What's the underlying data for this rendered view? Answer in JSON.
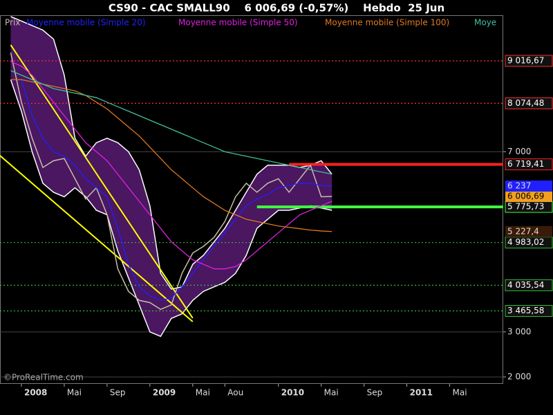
{
  "chart_data": {
    "type": "line",
    "title": "CS90 - CAC SMALL90    6 006,69 (-0,57%)    Hebdo  25 Jun",
    "credit": "©ProRealTime.com",
    "x": [
      "2007-12",
      "2008-01",
      "2008-02",
      "2008-03",
      "2008-04",
      "2008-05",
      "2008-06",
      "2008-07",
      "2008-08",
      "2008-09",
      "2008-10",
      "2008-11",
      "2008-12",
      "2009-01",
      "2009-02",
      "2009-03",
      "2009-04",
      "2009-05",
      "2009-06",
      "2009-07",
      "2009-08",
      "2009-09",
      "2009-10",
      "2009-11",
      "2009-12",
      "2010-01",
      "2010-02",
      "2010-03",
      "2010-04",
      "2010-05",
      "2010-06"
    ],
    "xlim": [
      "2007-11",
      "2011-10"
    ],
    "xticks": [
      {
        "value": "2008-01",
        "label": "2008"
      },
      {
        "value": "2008-05",
        "label": "Mai"
      },
      {
        "value": "2008-09",
        "label": "Sep"
      },
      {
        "value": "2009-01",
        "label": "2009"
      },
      {
        "value": "2009-05",
        "label": "Mai"
      },
      {
        "value": "2009-08",
        "label": "Aou"
      },
      {
        "value": "2010-01",
        "label": "2010"
      },
      {
        "value": "2010-05",
        "label": "Mai"
      },
      {
        "value": "2010-09",
        "label": "Sep"
      },
      {
        "value": "2011-01",
        "label": "2011"
      },
      {
        "value": "2011-05",
        "label": "Mai"
      }
    ],
    "bold_xticks": [
      "2008",
      "2009",
      "2010",
      "2011"
    ],
    "ylim": [
      1846,
      10030
    ],
    "yticks": [
      {
        "value": 2000,
        "label": "2 000"
      },
      {
        "value": 3000,
        "label": "3 000"
      },
      {
        "value": 7000,
        "label": "7 000"
      }
    ],
    "grid": true,
    "series": [
      {
        "name": "Prix",
        "color": "#c8bfa8",
        "last_value_label": "6 006,69",
        "label_fill": "#f0a020",
        "values": [
          9200,
          8100,
          7300,
          6650,
          6800,
          6850,
          6400,
          5950,
          6200,
          5600,
          4400,
          3900,
          3700,
          3650,
          3500,
          3600,
          4300,
          4750,
          4900,
          5100,
          5450,
          6000,
          6300,
          6100,
          6300,
          6400,
          6100,
          6400,
          6700,
          6000,
          6006.69
        ]
      },
      {
        "name": "Moyenne mobile (Simple 20)",
        "color": "#2020ff",
        "last_value_label": "6 237",
        "label_fill": "#2020ff",
        "values": [
          null,
          8600,
          7800,
          7300,
          7000,
          6900,
          6700,
          6400,
          6200,
          6000,
          5300,
          4500,
          4000,
          3800,
          3700,
          3750,
          4000,
          4300,
          4600,
          4900,
          5200,
          5500,
          5800,
          5950,
          6050,
          6200,
          6250,
          6300,
          6300,
          6250,
          6237
        ]
      },
      {
        "name": "Moyenne mobile (Simple 50)",
        "color": "#e020e0",
        "values": [
          9000,
          8900,
          8700,
          8400,
          8100,
          7800,
          7500,
          7200,
          7000,
          6800,
          6500,
          6200,
          5900,
          5600,
          5300,
          5000,
          4800,
          4600,
          4500,
          4400,
          4400,
          4450,
          4600,
          4800,
          5000,
          5200,
          5400,
          5600,
          5700,
          5800,
          5900
        ]
      },
      {
        "name": "Moyenne mobile (Simple 100)",
        "color": "#e07820",
        "last_value_label": "5 227,4",
        "label_fill": "#3a1a08",
        "values": [
          8600,
          8600,
          8550,
          8500,
          8450,
          8400,
          8350,
          8250,
          8100,
          7950,
          7750,
          7550,
          7350,
          7100,
          6850,
          6600,
          6400,
          6200,
          6000,
          5850,
          5700,
          5600,
          5500,
          5450,
          5400,
          5350,
          5320,
          5290,
          5260,
          5240,
          5227.4
        ]
      },
      {
        "name": "Moye",
        "color": "#40c0a0",
        "values": [
          8800,
          8700,
          8600,
          8500,
          8400,
          8350,
          8300,
          8250,
          8200,
          8100,
          8000,
          7900,
          7800,
          7700,
          7600,
          7500,
          7400,
          7300,
          7200,
          7100,
          7000,
          6950,
          6900,
          6850,
          6800,
          6750,
          6700,
          6650,
          6600,
          6550,
          6500
        ]
      }
    ],
    "band": {
      "color": "#4a1760",
      "upper": [
        10000,
        9900,
        9800,
        9700,
        9500,
        8700,
        7300,
        6900,
        7200,
        7300,
        7200,
        7000,
        6600,
        5800,
        4300,
        3950,
        4000,
        4500,
        4700,
        5000,
        5300,
        5700,
        6100,
        6500,
        6700,
        6700,
        6700,
        6650,
        6700,
        6800,
        6500
      ],
      "lower": [
        8600,
        7900,
        7000,
        6300,
        6100,
        6000,
        6200,
        6000,
        5700,
        5600,
        4800,
        4200,
        3600,
        3000,
        2900,
        3300,
        3400,
        3700,
        3900,
        4000,
        4100,
        4300,
        4700,
        5300,
        5500,
        5700,
        5700,
        5750,
        5800,
        5750,
        5700
      ]
    },
    "trendlines": [
      {
        "color": "#ffff00",
        "x": [
          "2007-12",
          "2009-05"
        ],
        "values": [
          9370,
          3305
        ]
      },
      {
        "color": "#ffff00",
        "x": [
          "2007-11",
          "2009-05"
        ],
        "values": [
          6913,
          3228
        ]
      }
    ],
    "levels": [
      {
        "value": 9016.67,
        "label": "9 016,67",
        "color": "#ff3030",
        "style": "dotted"
      },
      {
        "value": 8074.48,
        "label": "8 074,48",
        "color": "#ff3030",
        "style": "dotted"
      },
      {
        "value": 6719.41,
        "label": "6 719,41",
        "color": "#ff2020",
        "style": "solid",
        "from": "2010-02"
      },
      {
        "value": 5775.73,
        "label": "5 775,73",
        "color": "#40ff40",
        "style": "solid",
        "from": "2009-11"
      },
      {
        "value": 4983.02,
        "label": "4 983,02",
        "color": "#30c030",
        "style": "dotted"
      },
      {
        "value": 4035.54,
        "label": "4 035,54",
        "color": "#30c030",
        "style": "dotted"
      },
      {
        "value": 3465.58,
        "label": "3 465,58",
        "color": "#30c030",
        "style": "dotted"
      }
    ]
  }
}
